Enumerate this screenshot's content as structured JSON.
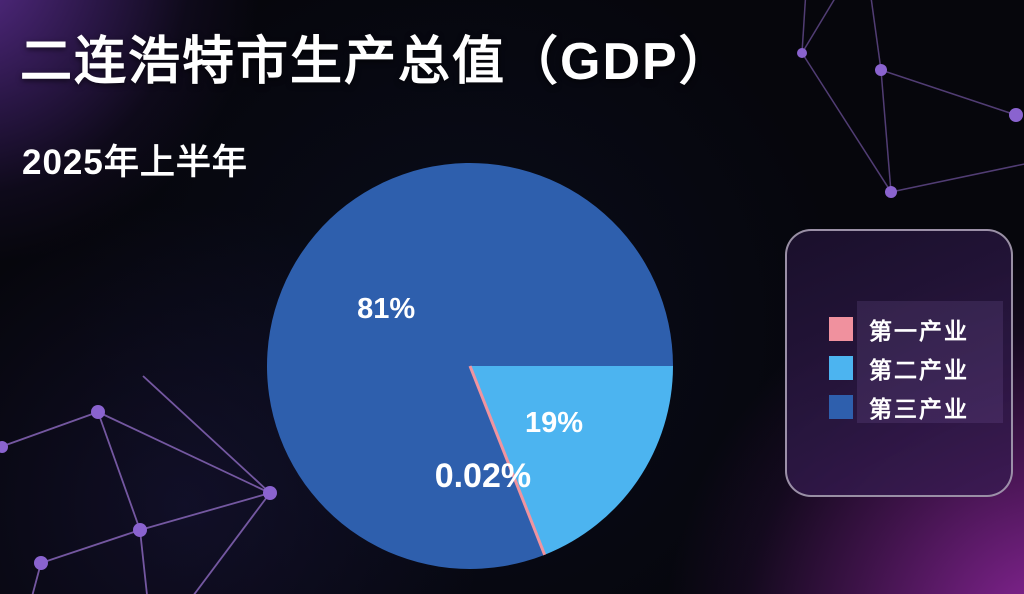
{
  "page": {
    "title": "二连浩特市生产总值（GDP）",
    "subtitle": "2025年上半年"
  },
  "chart_data": {
    "type": "pie",
    "title": "二连浩特市生产总值（GDP）",
    "subtitle": "2025年上半年",
    "direction": "clockwise",
    "start_angle_deg": 0,
    "slices": [
      {
        "name": "第二产业",
        "value": 19,
        "label": "19%",
        "color": "#4cb4f0"
      },
      {
        "name": "第一产业",
        "value": 0.02,
        "label": "0.02%",
        "color": "#f0949f"
      },
      {
        "name": "第三产业",
        "value": 81,
        "label": "81%",
        "color": "#2e5fad"
      }
    ],
    "legend": {
      "position": "right",
      "items": [
        {
          "label": "第一产业",
          "color": "#f0919e"
        },
        {
          "label": "第二产业",
          "color": "#4cb4f0"
        },
        {
          "label": "第三产业",
          "color": "#2e5fad"
        }
      ]
    },
    "label_color": "#ffffff"
  },
  "decoration": {
    "background_base": "#06060c",
    "glow_top_left": "#603096",
    "glow_bottom_right": "#9628a5",
    "constellation_dot_color": "#8a63cf",
    "constellation_line_color": "#5a4380"
  }
}
